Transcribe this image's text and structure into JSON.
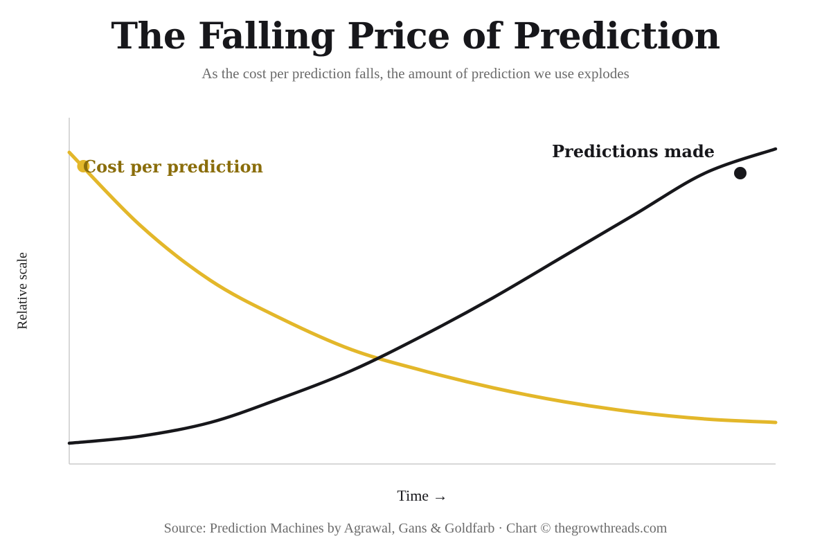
{
  "title": "The Falling Price of Prediction",
  "subtitle": "As the cost per prediction falls, the amount of prediction we use explodes",
  "source": "Source: Prediction Machines by Agrawal, Gans & Goldfarb · Chart © thegrowthreads.com",
  "colors": {
    "cost": "#e3b72a",
    "cost_label": "#8a6d0b",
    "predictions": "#17171b",
    "axis": "#cccccc"
  },
  "chart_data": {
    "type": "line",
    "xlabel": "Time →",
    "ylabel": "Relative scale",
    "xlim": [
      0,
      1
    ],
    "ylim": [
      0,
      1
    ],
    "grid": false,
    "series": [
      {
        "name": "Cost per prediction",
        "x": [
          0,
          0.1,
          0.2,
          0.3,
          0.4,
          0.5,
          0.6,
          0.7,
          0.8,
          0.9,
          1.0
        ],
        "y": [
          0.9,
          0.69,
          0.53,
          0.42,
          0.33,
          0.27,
          0.22,
          0.18,
          0.15,
          0.13,
          0.12
        ],
        "marker": {
          "x": 0.02,
          "y": 0.86
        }
      },
      {
        "name": "Predictions made",
        "x": [
          0,
          0.1,
          0.2,
          0.3,
          0.4,
          0.5,
          0.6,
          0.7,
          0.8,
          0.9,
          1.0
        ],
        "y": [
          0.06,
          0.08,
          0.12,
          0.19,
          0.27,
          0.37,
          0.48,
          0.6,
          0.72,
          0.84,
          0.91
        ],
        "marker": {
          "x": 0.95,
          "y": 0.84
        }
      }
    ]
  }
}
